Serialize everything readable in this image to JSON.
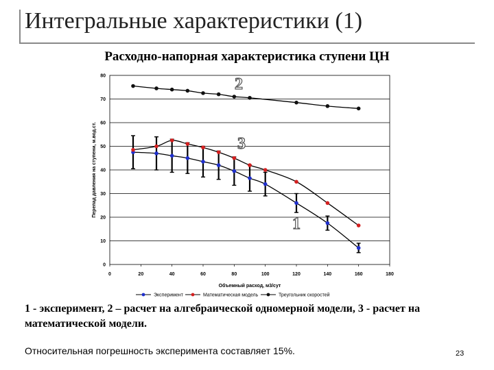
{
  "slide": {
    "title": "Интегральные характеристики (1)",
    "chart_heading": "Расходно-напорная характеристика ступени ЦН",
    "caption": "1 - эксперимент, 2 – расчет на алгебраической одномерной модели, 3 - расчет на математической модели.",
    "note": "Относительная погрешность эксперимента составляет 15%.",
    "page_number": "23"
  },
  "chart_data": {
    "type": "line",
    "title": "",
    "xlabel": "Объемный расход, м3/сут",
    "ylabel": "Перепад давления на ступени, м.вод.ст.",
    "xlim": [
      0,
      180
    ],
    "ylim": [
      0,
      80
    ],
    "x_ticks": [
      0,
      20,
      40,
      60,
      80,
      100,
      120,
      140,
      160,
      180
    ],
    "y_ticks": [
      0,
      10,
      20,
      30,
      40,
      50,
      60,
      70,
      80
    ],
    "grid": true,
    "legend_position": "bottom",
    "series": [
      {
        "name": "Эксперимент",
        "curve_label": "1",
        "color": "#1f2fcc",
        "x": [
          15,
          30,
          40,
          50,
          60,
          70,
          80,
          90,
          100,
          120,
          140,
          160
        ],
        "y": [
          47.5,
          47,
          46,
          45,
          43.5,
          42,
          39.5,
          36.5,
          34,
          26,
          17.5,
          7
        ],
        "error": [
          7,
          7,
          7,
          6.5,
          6.5,
          6,
          6,
          5.5,
          5,
          4,
          3,
          2
        ]
      },
      {
        "name": "Математическая модель",
        "curve_label": "3",
        "color": "#d42020",
        "x": [
          15,
          30,
          40,
          50,
          60,
          70,
          80,
          90,
          100,
          120,
          140,
          160
        ],
        "y": [
          48.5,
          50,
          52.5,
          51,
          49.5,
          47.5,
          45,
          42,
          40,
          35,
          26,
          16.5
        ]
      },
      {
        "name": "Треугольник скоростей",
        "curve_label": "2",
        "color": "#111111",
        "x": [
          15,
          30,
          40,
          50,
          60,
          70,
          80,
          90,
          120,
          140,
          160
        ],
        "y": [
          75.5,
          74.5,
          74,
          73.5,
          72.5,
          72,
          71,
          70.5,
          68.5,
          67,
          66
        ]
      }
    ]
  }
}
